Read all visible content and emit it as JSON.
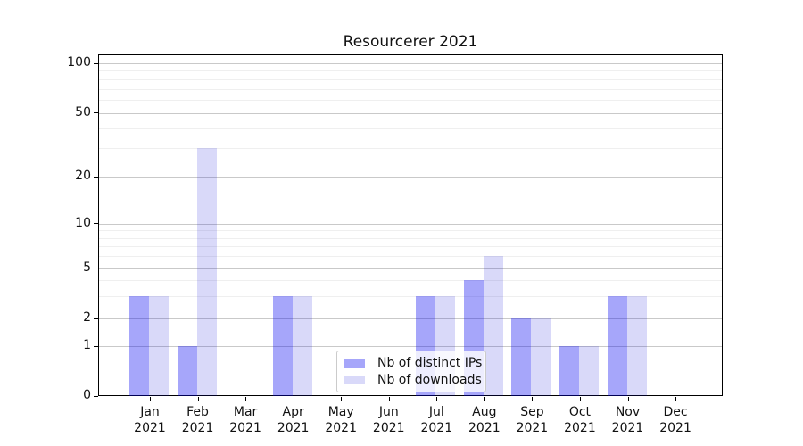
{
  "chart_data": {
    "type": "bar",
    "title": "Resourcerer 2021",
    "categories": [
      "Jan 2021",
      "Feb 2021",
      "Mar 2021",
      "Apr 2021",
      "May 2021",
      "Jun 2021",
      "Jul 2021",
      "Aug 2021",
      "Sep 2021",
      "Oct 2021",
      "Nov 2021",
      "Dec 2021"
    ],
    "series": [
      {
        "name": "Nb of distinct IPs",
        "values": [
          3,
          1,
          0,
          3,
          0,
          0,
          3,
          4,
          2,
          1,
          3,
          0
        ],
        "color": "#0000F059"
      },
      {
        "name": "Nb of downloads",
        "values": [
          3,
          30,
          0,
          3,
          0,
          0,
          3,
          6,
          2,
          1,
          3,
          0
        ],
        "color": "#0000D726"
      }
    ],
    "xlabel": "",
    "ylabel": "",
    "yscale": "symlog",
    "ylim": [
      0,
      113
    ],
    "y_major_ticks": [
      100,
      50,
      20,
      10,
      5,
      2,
      1,
      0
    ],
    "y_minor_ticks": [
      90,
      80,
      70,
      60,
      40,
      30,
      9,
      8,
      7,
      6,
      4,
      3
    ],
    "grid": true,
    "legend_position": "lower center",
    "colors": {
      "bar_distinct_ips_solid": "#a8a8fa",
      "bar_downloads_solid": "#dadaf8",
      "major_grid": "#c9c9c9",
      "minor_grid": "#efefef",
      "axis": "#000000"
    }
  }
}
